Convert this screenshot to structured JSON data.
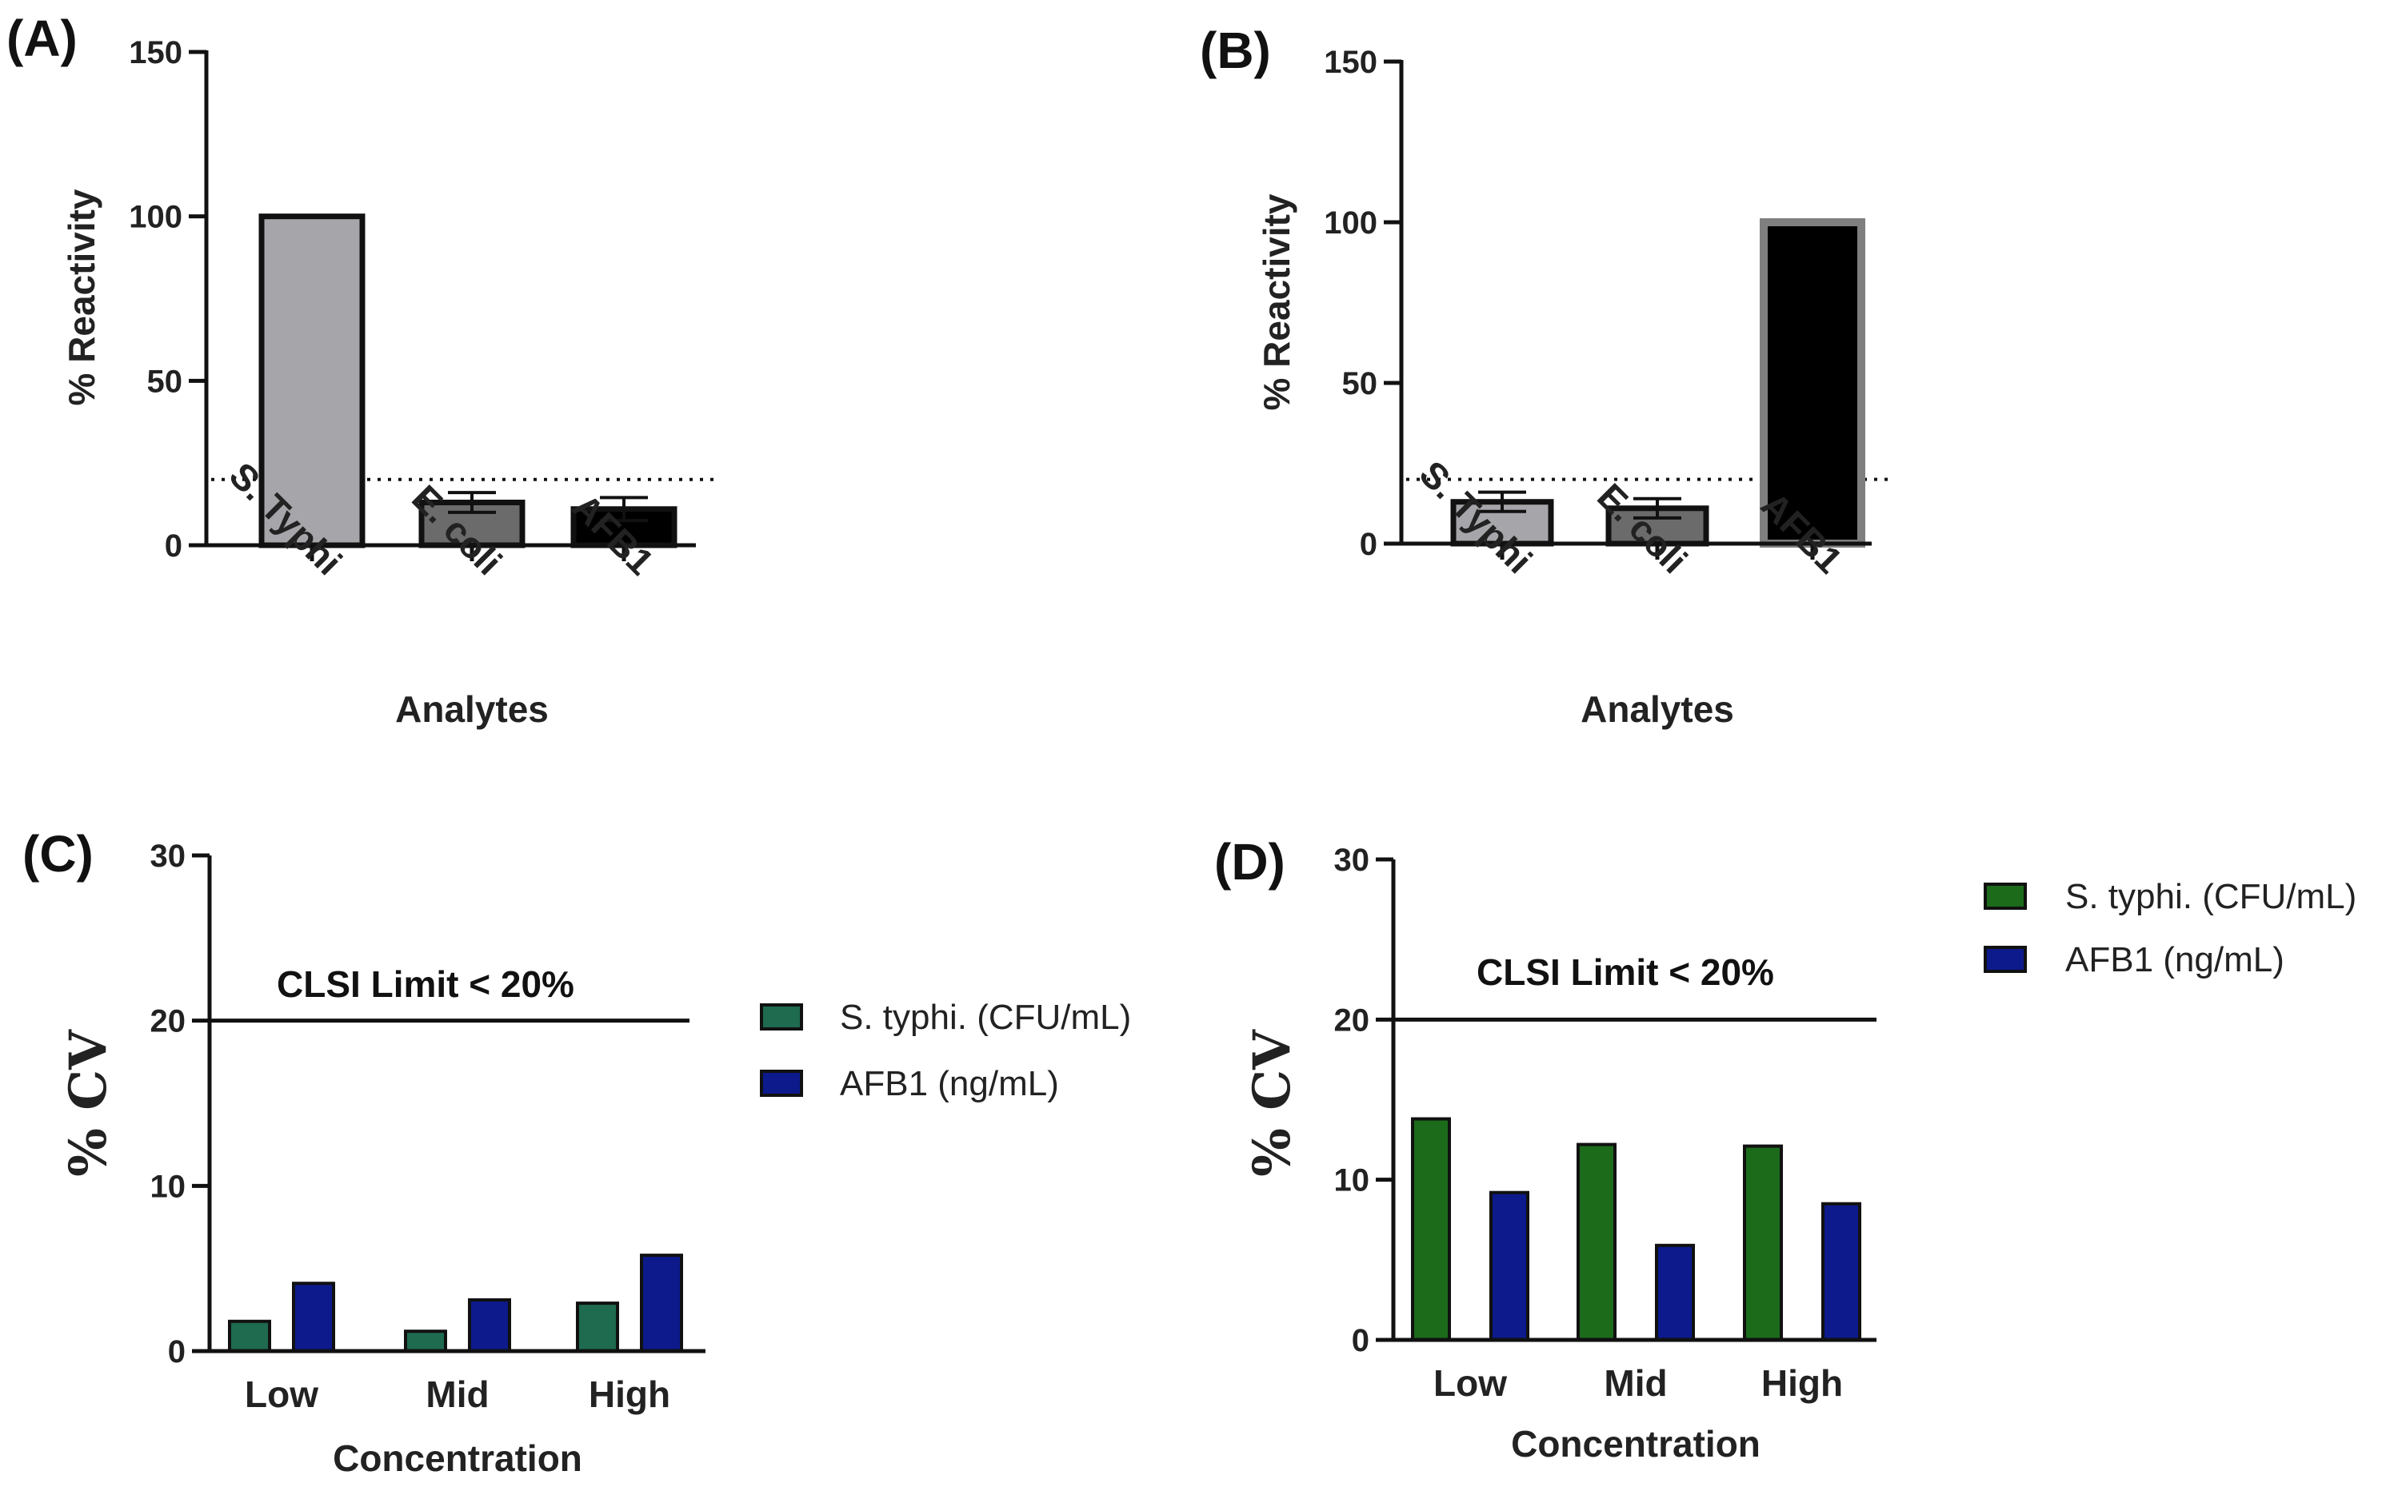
{
  "chart_data": [
    {
      "panel": "(A)",
      "type": "bar",
      "categories": [
        "S. Typhi",
        "E. coli",
        "AFB1"
      ],
      "values": [
        100,
        13,
        11
      ],
      "errors": [
        0,
        3,
        3.5
      ],
      "xlabel": "Analytes",
      "ylabel": "% Reactivity",
      "ylim": [
        0,
        150
      ],
      "yticks": [
        "0",
        "50",
        "100",
        "150"
      ],
      "threshold": 20,
      "colors": {
        "fills": [
          "#a6a6aa",
          "#6b6b6b",
          "#000000"
        ],
        "stroke": "#111111"
      }
    },
    {
      "panel": "(B)",
      "type": "bar",
      "categories": [
        "S. Typhi",
        "E. coli",
        "AFB1"
      ],
      "values": [
        13,
        11,
        100
      ],
      "errors": [
        3,
        3,
        0
      ],
      "xlabel": "Analytes",
      "ylabel": "% Reactivity",
      "ylim": [
        0,
        150
      ],
      "yticks": [
        "0",
        "50",
        "100",
        "150"
      ],
      "threshold": 20,
      "colors": {
        "fills": [
          "#a6a6aa",
          "#6b6b6b",
          "#000000"
        ],
        "stroke": "#111111",
        "afb1_stroke": "#7f7f7f"
      }
    },
    {
      "panel": "(C)",
      "type": "bar",
      "categories": [
        "Low",
        "Mid",
        "High"
      ],
      "series": [
        {
          "name": "S. typhi. (CFU/mL)",
          "values": [
            1.8,
            1.2,
            2.9
          ],
          "color": "#1e6b4f"
        },
        {
          "name": "AFB1 (ng/mL)",
          "values": [
            4.1,
            3.1,
            5.8
          ],
          "color": "#0d1a8c"
        }
      ],
      "xlabel": "Concentration",
      "ylabel": "% CV",
      "ylim": [
        0,
        30
      ],
      "yticks": [
        "0",
        "10",
        "20",
        "30"
      ],
      "limit_line": 20,
      "annotation": "CLSI Limit < 20%",
      "legend_position": "right"
    },
    {
      "panel": "(D)",
      "type": "bar",
      "categories": [
        "Low",
        "Mid",
        "High"
      ],
      "series": [
        {
          "name": "S. typhi. (CFU/mL)",
          "values": [
            13.8,
            12.2,
            12.1
          ],
          "color": "#1b6b1b"
        },
        {
          "name": "AFB1 (ng/mL)",
          "values": [
            9.2,
            5.9,
            8.5
          ],
          "color": "#0d1a8c"
        }
      ],
      "xlabel": "Concentration",
      "ylabel": "% CV",
      "ylim": [
        0,
        30
      ],
      "yticks": [
        "0",
        "10",
        "20",
        "30"
      ],
      "limit_line": 20,
      "annotation": "CLSI Limit < 20%",
      "legend_position": "top-right"
    }
  ]
}
